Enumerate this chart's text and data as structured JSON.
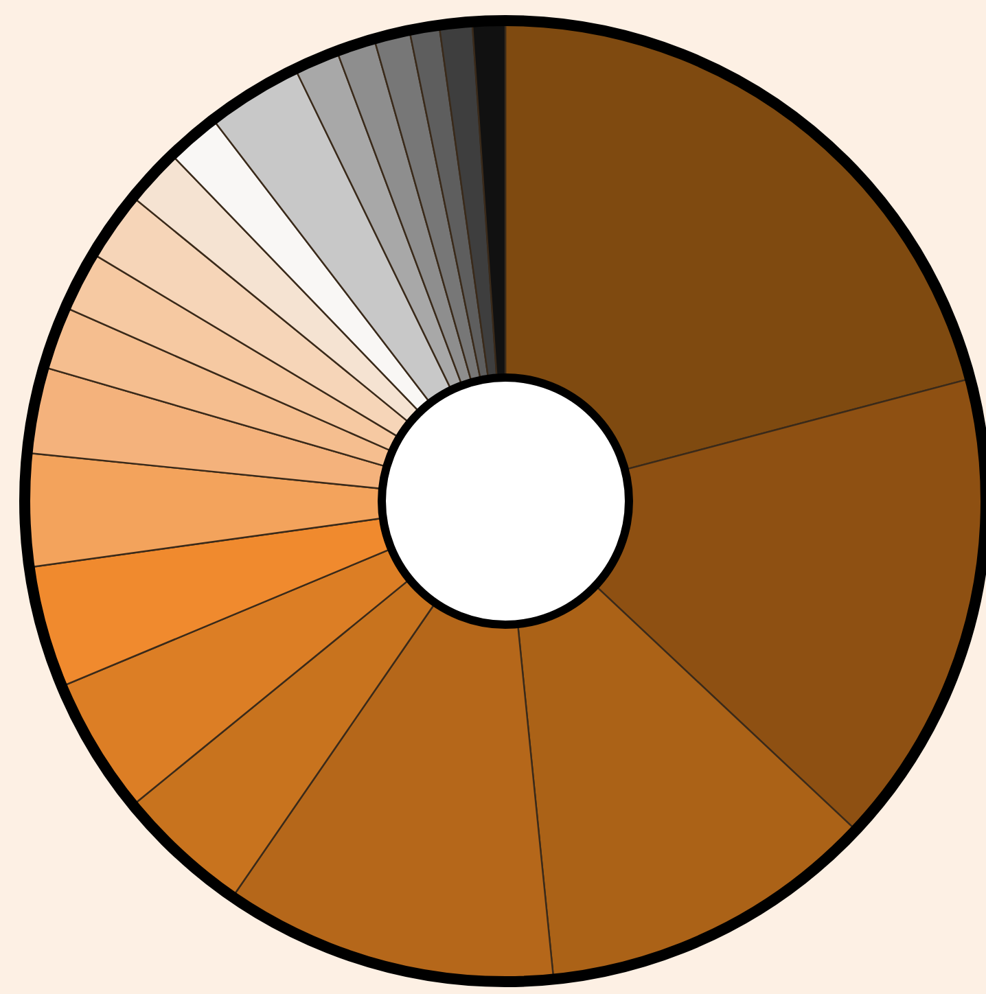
{
  "chart_data": {
    "type": "donut",
    "categories": [
      null,
      null,
      null,
      null,
      null,
      null,
      null,
      null,
      null,
      null,
      null,
      null,
      null,
      null,
      null,
      null,
      null,
      null,
      null,
      null,
      null
    ],
    "values": [
      20.9,
      16.1,
      11.4,
      11.2,
      4.5,
      4.6,
      4.1,
      3.8,
      2.9,
      2.1,
      2.0,
      2.3,
      1.9,
      1.8,
      3.2,
      1.5,
      1.3,
      1.2,
      1.0,
      1.1,
      1.1
    ],
    "colors": [
      "#7f4a10",
      "#8e5012",
      "#ab6217",
      "#b5671a",
      "#c8731e",
      "#dc7e25",
      "#f08a2e",
      "#f3a35c",
      "#f4b27c",
      "#f5be8f",
      "#f6c9a2",
      "#f6d5b8",
      "#f5e3d2",
      "#f9f7f5",
      "#c8c8c8",
      "#a8a8a8",
      "#8e8e8e",
      "#777777",
      "#5e5e5e",
      "#3e3e3e",
      "#111111"
    ]
  }
}
